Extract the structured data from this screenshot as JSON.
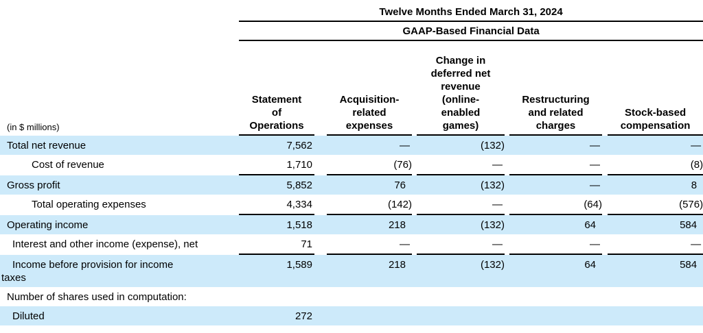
{
  "table": {
    "period_header": "Twelve Months Ended March 31, 2024",
    "basis_header": "GAAP-Based Financial Data",
    "units_label": "(in $ millions)",
    "columns": [
      {
        "name": "statement-of-operations",
        "lines": [
          "Statement",
          "of",
          "Operations"
        ]
      },
      {
        "name": "acquisition-related-expenses",
        "lines": [
          "Acquisition-",
          "related",
          "expenses"
        ]
      },
      {
        "name": "change-in-deferred-net-revenue",
        "lines": [
          "Change in",
          "deferred net",
          "revenue",
          "(online-",
          "enabled",
          "games)"
        ]
      },
      {
        "name": "restructuring-and-related-charges",
        "lines": [
          "Restructuring",
          "and related",
          "charges"
        ]
      },
      {
        "name": "stock-based-compensation",
        "lines": [
          "Stock-based",
          "compensation"
        ]
      }
    ],
    "rows": [
      {
        "label": "Total net revenue",
        "indent": "none",
        "shaded": true,
        "rule": false,
        "values": [
          "7,562",
          "—",
          "(132)",
          "—",
          "—"
        ]
      },
      {
        "label": "Cost of revenue",
        "indent": "large",
        "shaded": false,
        "rule": true,
        "values": [
          "1,710",
          "(76)",
          "—",
          "—",
          "(8)"
        ]
      },
      {
        "label": "Gross profit",
        "indent": "none",
        "shaded": true,
        "rule": false,
        "values": [
          "5,852",
          "76",
          "(132)",
          "—",
          "8"
        ]
      },
      {
        "label": "Total operating expenses",
        "indent": "large",
        "shaded": false,
        "rule": true,
        "values": [
          "4,334",
          "(142)",
          "—",
          "(64)",
          "(576)"
        ]
      },
      {
        "label": "Operating income",
        "indent": "none",
        "shaded": true,
        "rule": false,
        "values": [
          "1,518",
          "218",
          "(132)",
          "64",
          "584"
        ]
      },
      {
        "label": "Interest and other income (expense), net",
        "indent": "small",
        "shaded": false,
        "rule": true,
        "values": [
          "71",
          "—",
          "—",
          "—",
          "—"
        ]
      },
      {
        "label": "Income before provision for income\ntaxes",
        "indent": "hanging",
        "shaded": true,
        "rule": false,
        "values": [
          "1,589",
          "218",
          "(132)",
          "64",
          "584"
        ]
      },
      {
        "label": "Number of shares used in computation:",
        "indent": "none",
        "shaded": false,
        "rule": false,
        "values": [
          "",
          "",
          "",
          "",
          ""
        ]
      },
      {
        "label": "Diluted",
        "indent": "small",
        "shaded": true,
        "rule": false,
        "values": [
          "272",
          "",
          "",
          "",
          ""
        ]
      }
    ]
  },
  "colors": {
    "row_highlight": "#cdeafa",
    "rule_color": "#000000",
    "text_color": "#000000"
  }
}
